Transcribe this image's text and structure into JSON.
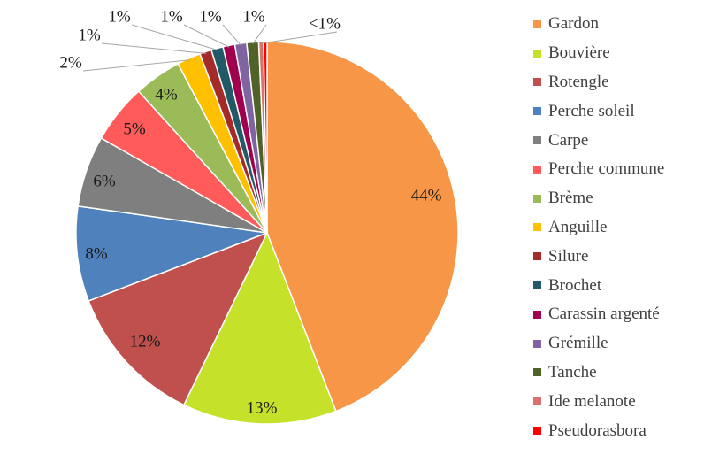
{
  "chart_data": {
    "type": "pie",
    "categories": [
      "Gardon",
      "Bouvière",
      "Rotengle",
      "Perche soleil",
      "Carpe",
      "Perche commune",
      "Brème",
      "Anguille",
      "Silure",
      "Brochet",
      "Carassin argenté",
      "Grémille",
      "Tanche",
      "Ide melanote",
      "Pseudorasbora"
    ],
    "values": [
      44,
      13,
      12,
      8,
      6,
      5,
      4,
      2,
      1,
      1,
      1,
      1,
      1,
      0.4,
      0.3
    ],
    "labels": [
      "44%",
      "13%",
      "12%",
      "8%",
      "6%",
      "5%",
      "4%",
      "2%",
      "1%",
      "1%",
      "1%",
      "1%",
      "1%",
      "<1%",
      ""
    ],
    "colors": [
      "#F79646",
      "#C5E12A",
      "#C0504D",
      "#4F81BD",
      "#7F7F7F",
      "#FF5B5B",
      "#9BBB59",
      "#FFC000",
      "#A52A2A",
      "#215967",
      "#A0004D",
      "#8064A2",
      "#4F6228",
      "#D9716C",
      "#FF0000"
    ],
    "legend_position": "right"
  }
}
